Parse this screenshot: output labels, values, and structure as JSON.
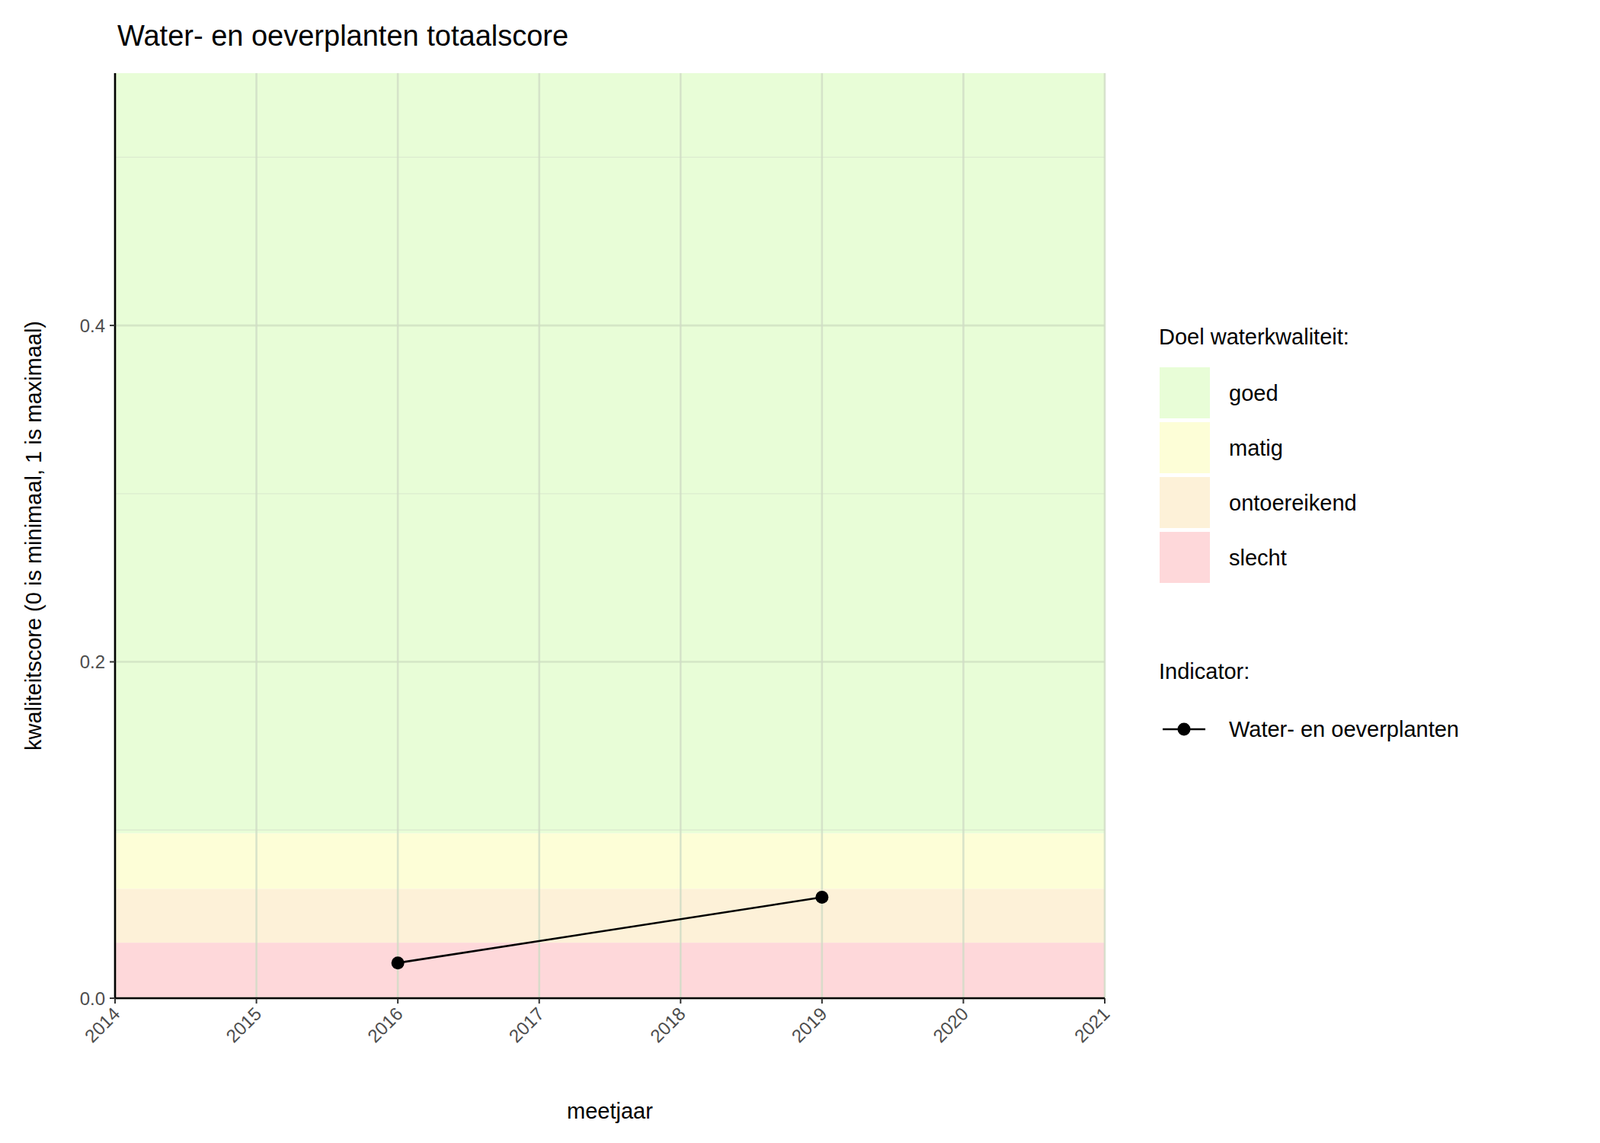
{
  "chart_data": {
    "type": "line",
    "title": "Water- en oeverplanten totaalscore",
    "x_label": "meetjaar",
    "y_label": "kwaliteitscore (0 is minimaal, 1 is maximaal)",
    "x": [
      2016,
      2019
    ],
    "series": [
      {
        "name": "Water- en oeverplanten",
        "color": "#000000",
        "marker": "circle",
        "line_style": "solid",
        "values": [
          0.021,
          0.06
        ]
      }
    ],
    "xlim": [
      2014,
      2021
    ],
    "xticks": [
      2014,
      2015,
      2016,
      2017,
      2018,
      2019,
      2020,
      2021
    ],
    "ylim": [
      0,
      0.55
    ],
    "yticks": [
      {
        "value": 0,
        "label": "0.0"
      },
      {
        "value": 0.2,
        "label": "0.2"
      },
      {
        "value": 0.4,
        "label": "0.4"
      }
    ],
    "grid": true,
    "legend": "right",
    "bands_title": "Doel waterkwaliteit:",
    "series_legend_title": "Indicator:",
    "bands": [
      {
        "name": "goed",
        "color": "#e8fdd7",
        "from": 0.098,
        "to": 0.55
      },
      {
        "name": "matig",
        "color": "#fdfed7",
        "from": 0.065,
        "to": 0.098
      },
      {
        "name": "ontoereikend",
        "color": "#fdf1d8",
        "from": 0.033,
        "to": 0.065
      },
      {
        "name": "slecht",
        "color": "#fed8da",
        "from": 0,
        "to": 0.033
      }
    ]
  }
}
